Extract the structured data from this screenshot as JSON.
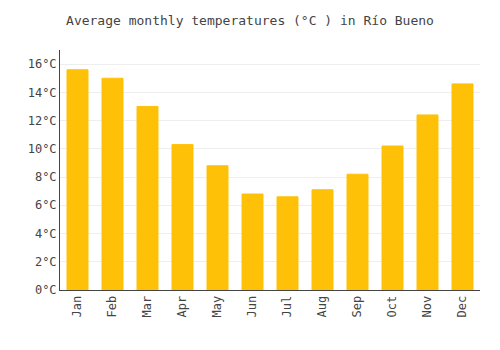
{
  "chart_data": {
    "type": "bar",
    "title": "Average monthly temperatures (°C ) in Río Bueno",
    "categories": [
      "Jan",
      "Feb",
      "Mar",
      "Apr",
      "May",
      "Jun",
      "Jul",
      "Aug",
      "Sep",
      "Oct",
      "Nov",
      "Dec"
    ],
    "values": [
      15.6,
      15.0,
      13.0,
      10.3,
      8.8,
      6.8,
      6.6,
      7.1,
      8.2,
      10.2,
      12.4,
      14.6
    ],
    "color": "#FFC107",
    "ylim": [
      0,
      17
    ],
    "yticks": [
      {
        "value": 0,
        "label": "0°C"
      },
      {
        "value": 2,
        "label": "2°C"
      },
      {
        "value": 4,
        "label": "4°C"
      },
      {
        "value": 6,
        "label": "6°C"
      },
      {
        "value": 8,
        "label": "8°C"
      },
      {
        "value": 10,
        "label": "10°C"
      },
      {
        "value": 12,
        "label": "12°C"
      },
      {
        "value": 14,
        "label": "14°C"
      },
      {
        "value": 16,
        "label": "16°C"
      }
    ],
    "grid": true
  }
}
